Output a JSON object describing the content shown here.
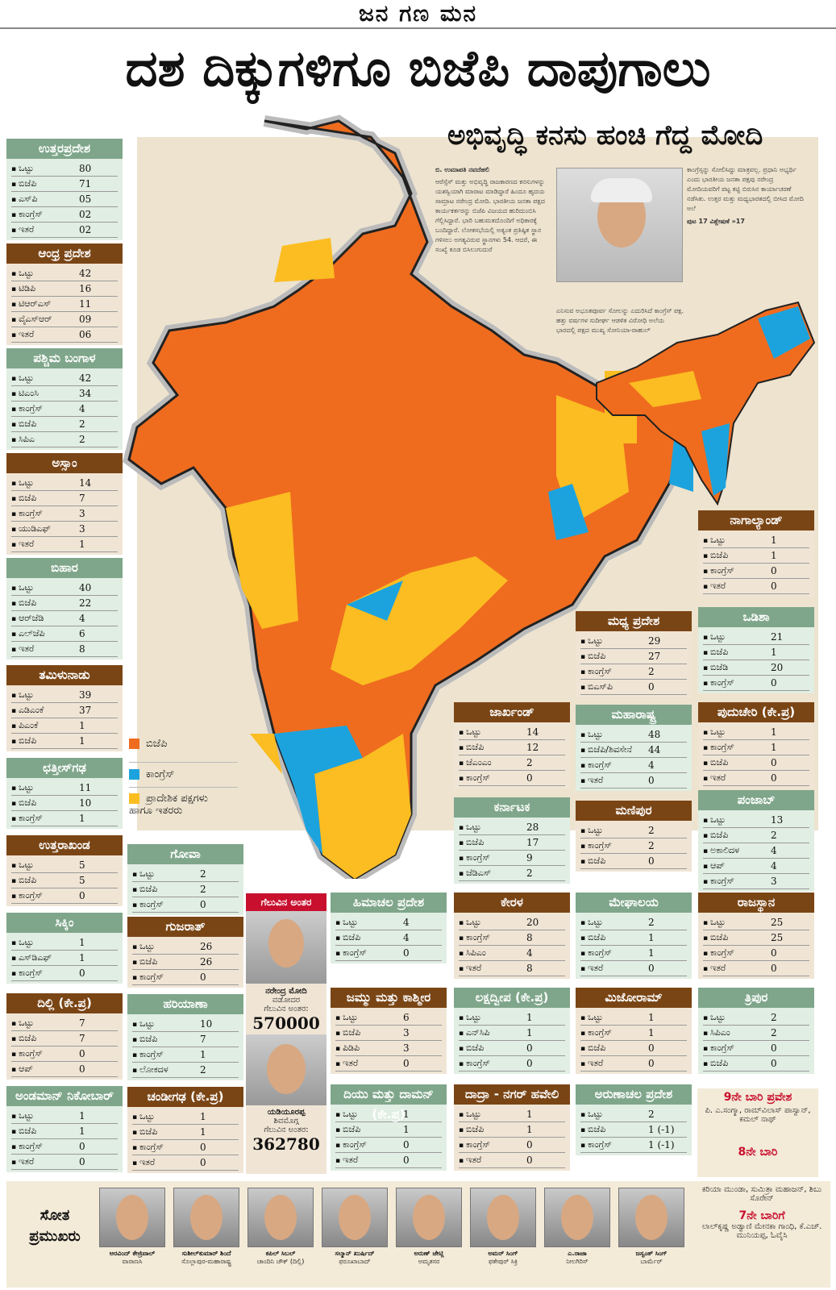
{
  "masthead": "ಜನ ಗಣ ಮನ",
  "headline": "ದಶ ದಿಕ್ಕುಗಳಿಗೂ ಬಿಜೆಪಿ ದಾಪುಗಾಲು",
  "subhead": "ಅಭಿವೃದ್ಧಿ ಕನಸು ಹಂಚಿ ಗೆದ್ದ ಮೋದಿ",
  "article": {
    "byline": "ಬಿ. ಉಮಾಪತಿ ನವದೆಹಲಿ",
    "col1": "ಆರೆಸ್ಸೆಸ್ ಮತ್ತು ಅಭಿವೃದ್ಧಿ ರಾಜಕಾರಣದ ಕನಸುಗಳನ್ನು ಯಶಸ್ವಿಯಾಗಿ ಮಾರಾಟ ಮಾಡಿದ್ದಾರೆ ಹಿಂದೂ ಹೃದಯ ಸಾಮ್ರಾಟ ನರೇಂದ್ರ ಮೋದಿ. ಭಾರತೀಯ ಜನತಾ ಪಕ್ಷದ ಕಾರ್ಯಕರ್ತರನ್ನು ಬಿಜೆಪಿ ವಿಜಯದ ಹುರಿದುಂಬಿಸಿ ಗೆಲ್ಲಿಸಿದ್ದಾರೆ. ಭಾರಿ ಬಹುಮತದೊಂದಿಗೆ ಅಧಿಕಾರಕ್ಕೆ ಬಂದಿದ್ದಾರೆ. ಲೋಕಸಭೆಯಲ್ಲಿ ಅತ್ಯಂತ ಪ್ರತಿಷ್ಠಿತ ಸ್ಥಾನ ಗಳಿಸಲು ಅಗತ್ಯವಿರುವ ಸ್ಥಾನಗಳು 54. ಆದರೆ, ಈ ಸಂಖ್ಯೆ ಕೂಡ ಬಿಸಿಲುಗುದುರೆ",
    "col2": "ಎನಿಸುವ ಅಭೂತಪೂರ್ವ ಸೋಲನ್ನು ಎದುರಿಸಿದೆ ಕಾಂಗ್ರೆಸ್ ಪಕ್ಷ. ಹತ್ತು ವರ್ಷಗಳ ಸುದೀರ್ಘ ಆಡಳಿತ ವಿರೋಧಿ ಅಲೆಯ ಭಾರದಲ್ಲಿ ಪಕ್ಷದ ಮುಖ್ಯ ಸೋನಿಯಾ-ರಾಹುಲ್",
    "col3": "ಕಾಂಗ್ರೆಸ್ಸನ್ನು ಸೋಲಿಸಿದ್ದು ಮಾತ್ರವಲ್ಲ. ಪ್ರಧಾನಿ ಅಭ್ಯರ್ಥಿ ಎಂದು ಭಾರತೀಯ ಜನತಾ ಪಕ್ಷವು ನರೇಂದ್ರ ಮೋದಿಯವರಿಗೆ ಪಟ್ಟ ಕಟ್ಟಿ ಬಿರುಸಿನ ಕಾರ್ಯಾಚರಣೆ ನಡೆಸಿತು. ಉತ್ತರ ಮತ್ತು ಮಧ್ಯಭಾರತದಲ್ಲಿ ಬೀಸಿದ ಮೋದಿ ಅಲೆ",
    "more": "ಪುಟ 17 ವಿಶ್ಲೇಷಣೆ »17"
  },
  "legend": [
    {
      "label": "ಬಿಜೆಪಿ",
      "color": "#ef6c1f"
    },
    {
      "label": "ಕಾಂಗ್ರೆಸ್",
      "color": "#1ca3de"
    },
    {
      "label": "ಪ್ರಾದೇಶಿಕ ಪಕ್ಷಗಳು ಹಾಗೂ ಇತರರು",
      "color": "#fbbd21"
    }
  ],
  "colors": {
    "bjp": "#ef6c1f",
    "congress": "#1ca3de",
    "regional": "#fbbd21",
    "green_header": "#7fa68a",
    "brown_header": "#7a4515"
  },
  "states": [
    {
      "name": "ಉತ್ತರಪ್ರದೇಶ",
      "rows": [
        [
          "ಒಟ್ಟು",
          "80"
        ],
        [
          "ಬಿಜೆಪಿ",
          "71"
        ],
        [
          "ಎಸ್‌ಪಿ",
          "05"
        ],
        [
          "ಕಾಂಗ್ರೆಸ್",
          "02"
        ],
        [
          "ಇತರೆ",
          "02"
        ]
      ]
    },
    {
      "name": "ಆಂಧ್ರ ಪ್ರದೇಶ",
      "rows": [
        [
          "ಒಟ್ಟು",
          "42"
        ],
        [
          "ಟಿಡಿಪಿ",
          "16"
        ],
        [
          "ಟಿಆರ್‌ಎಸ್",
          "11"
        ],
        [
          "ವೈಎಸ್ಆರ್",
          "09"
        ],
        [
          "ಇತರೆ",
          "06"
        ]
      ]
    },
    {
      "name": "ಪಶ್ಚಿಮ ಬಂಗಾಳ",
      "rows": [
        [
          "ಒಟ್ಟು",
          "42"
        ],
        [
          "ಟಿಎಂಸಿ",
          "34"
        ],
        [
          "ಕಾಂಗ್ರೆಸ್",
          "4"
        ],
        [
          "ಬಿಜೆಪಿ",
          "2"
        ],
        [
          "ಸಿಪಿಎ",
          "2"
        ]
      ]
    },
    {
      "name": "ಅಸ್ಸಾಂ",
      "rows": [
        [
          "ಒಟ್ಟು",
          "14"
        ],
        [
          "ಬಿಜೆಪಿ",
          "7"
        ],
        [
          "ಕಾಂಗ್ರೆಸ್",
          "3"
        ],
        [
          "ಯುಡಿಎಫ್",
          "3"
        ],
        [
          "ಇತರೆ",
          "1"
        ]
      ]
    },
    {
      "name": "ಬಿಹಾರ",
      "rows": [
        [
          "ಒಟ್ಟು",
          "40"
        ],
        [
          "ಬಿಜೆಪಿ",
          "22"
        ],
        [
          "ಆರ್‌ಜೆಡಿ",
          "4"
        ],
        [
          "ಎಲ್‌ಜೆಪಿ",
          "6"
        ],
        [
          "ಇತರೆ",
          "8"
        ]
      ]
    },
    {
      "name": "ತಮಿಳುನಾಡು",
      "rows": [
        [
          "ಒಟ್ಟು",
          "39"
        ],
        [
          "ಎಡಿಎಂಕೆ",
          "37"
        ],
        [
          "ಪಿಎಂಕೆ",
          "1"
        ],
        [
          "ಬಿಜೆಪಿ",
          "1"
        ]
      ]
    },
    {
      "name": "ಛತ್ತೀಸ್‌ಗಢ",
      "rows": [
        [
          "ಒಟ್ಟು",
          "11"
        ],
        [
          "ಬಿಜೆಪಿ",
          "10"
        ],
        [
          "ಕಾಂಗ್ರೆಸ್",
          "1"
        ]
      ]
    },
    {
      "name": "ಉತ್ತರಾಖಂಡ",
      "rows": [
        [
          "ಒಟ್ಟು",
          "5"
        ],
        [
          "ಬಿಜೆಪಿ",
          "5"
        ],
        [
          "ಕಾಂಗ್ರೆಸ್",
          "0"
        ]
      ]
    },
    {
      "name": "ಸಿಕ್ಕಿಂ",
      "rows": [
        [
          "ಒಟ್ಟು",
          "1"
        ],
        [
          "ಎಸ್‌ಡಿಎಫ್",
          "1"
        ],
        [
          "ಕಾಂಗ್ರೆಸ್",
          "0"
        ]
      ]
    },
    {
      "name": "ದಿಲ್ಲಿ (ಕೇ.ಪ್ರ)",
      "rows": [
        [
          "ಒಟ್ಟು",
          "7"
        ],
        [
          "ಬಿಜೆಪಿ",
          "7"
        ],
        [
          "ಕಾಂಗ್ರೆಸ್",
          "0"
        ],
        [
          "ಆಪ್",
          "0"
        ]
      ]
    },
    {
      "name": "ಅಂಡಮಾನ್ ನಿಕೋಬಾರ್",
      "rows": [
        [
          "ಒಟ್ಟು",
          "1"
        ],
        [
          "ಬಿಜೆಪಿ",
          "1"
        ],
        [
          "ಕಾಂಗ್ರೆಸ್",
          "0"
        ],
        [
          "ಇತರೆ",
          "0"
        ]
      ]
    },
    {
      "name": "ಗೋವಾ",
      "rows": [
        [
          "ಒಟ್ಟು",
          "2"
        ],
        [
          "ಬಿಜೆಪಿ",
          "2"
        ],
        [
          "ಕಾಂಗ್ರೆಸ್",
          "0"
        ]
      ]
    },
    {
      "name": "ಗುಜರಾತ್",
      "rows": [
        [
          "ಒಟ್ಟು",
          "26"
        ],
        [
          "ಬಿಜೆಪಿ",
          "26"
        ],
        [
          "ಕಾಂಗ್ರೆಸ್",
          "0"
        ]
      ]
    },
    {
      "name": "ಹರಿಯಾಣಾ",
      "rows": [
        [
          "ಒಟ್ಟು",
          "10"
        ],
        [
          "ಬಿಜೆಪಿ",
          "7"
        ],
        [
          "ಕಾಂಗ್ರೆಸ್",
          "1"
        ],
        [
          "ಲೋಕದಳ",
          "2"
        ]
      ]
    },
    {
      "name": "ಚಂಡೀಗಢ (ಕೇ.ಪ್ರ)",
      "rows": [
        [
          "ಒಟ್ಟು",
          "1"
        ],
        [
          "ಬಿಜೆಪಿ",
          "1"
        ],
        [
          "ಕಾಂಗ್ರೆಸ್",
          "0"
        ],
        [
          "ಇತರೆ",
          "0"
        ]
      ]
    },
    {
      "name": "ಹಿಮಾಚಲ ಪ್ರದೇಶ",
      "rows": [
        [
          "ಒಟ್ಟು",
          "4"
        ],
        [
          "ಬಿಜೆಪಿ",
          "4"
        ],
        [
          "ಕಾಂಗ್ರೆಸ್",
          "0"
        ]
      ]
    },
    {
      "name": "ಜಮ್ಮು ಮತ್ತು ಕಾಶ್ಮೀರ",
      "rows": [
        [
          "ಒಟ್ಟು",
          "6"
        ],
        [
          "ಬಿಜೆಪಿ",
          "3"
        ],
        [
          "ಪಿಡಿಪಿ",
          "3"
        ],
        [
          "ಇತರೆ",
          "0"
        ]
      ]
    },
    {
      "name": "ದಿಯು ಮತ್ತು ದಾಮನ್ (ಕೇ.ಪ್ರ)",
      "rows": [
        [
          "ಒಟ್ಟು",
          "1"
        ],
        [
          "ಬಿಜೆಪಿ",
          "1"
        ],
        [
          "ಕಾಂಗ್ರೆಸ್",
          "0"
        ],
        [
          "ಇತರೆ",
          "0"
        ]
      ]
    },
    {
      "name": "ಜಾರ್ಖಂಡ್",
      "rows": [
        [
          "ಒಟ್ಟು",
          "14"
        ],
        [
          "ಬಿಜೆಪಿ",
          "12"
        ],
        [
          "ಜೆಎಂಎಂ",
          "2"
        ],
        [
          "ಕಾಂಗ್ರೆಸ್",
          "0"
        ]
      ]
    },
    {
      "name": "ಕರ್ನಾಟಕ",
      "rows": [
        [
          "ಒಟ್ಟು",
          "28"
        ],
        [
          "ಬಿಜೆಪಿ",
          "17"
        ],
        [
          "ಕಾಂಗ್ರೆಸ್",
          "9"
        ],
        [
          "ಜೆಡಿಎಸ್",
          "2"
        ]
      ]
    },
    {
      "name": "ಕೇರಳ",
      "rows": [
        [
          "ಒಟ್ಟು",
          "20"
        ],
        [
          "ಕಾಂಗ್ರೆಸ್",
          "8"
        ],
        [
          "ಸಿಪಿಎಂ",
          "4"
        ],
        [
          "ಇತರೆ",
          "8"
        ]
      ]
    },
    {
      "name": "ಲಕ್ಷದ್ವೀಪ (ಕೇ.ಪ್ರ)",
      "rows": [
        [
          "ಒಟ್ಟು",
          "1"
        ],
        [
          "ಎನ್‌ಸಿಪಿ",
          "1"
        ],
        [
          "ಬಿಜೆಪಿ",
          "0"
        ],
        [
          "ಕಾಂಗ್ರೆಸ್",
          "0"
        ]
      ]
    },
    {
      "name": "ದಾದ್ರಾ - ನಗರ್ ಹವೇಲಿ",
      "rows": [
        [
          "ಒಟ್ಟು",
          "1"
        ],
        [
          "ಬಿಜೆಪಿ",
          "1"
        ],
        [
          "ಕಾಂಗ್ರೆಸ್",
          "0"
        ],
        [
          "ಇತರೆ",
          "0"
        ]
      ]
    },
    {
      "name": "ಮಧ್ಯ ಪ್ರದೇಶ",
      "rows": [
        [
          "ಒಟ್ಟು",
          "29"
        ],
        [
          "ಬಿಜೆಪಿ",
          "27"
        ],
        [
          "ಕಾಂಗ್ರೆಸ್",
          "2"
        ],
        [
          "ಬಿಎಸ್‌ಪಿ",
          "0"
        ]
      ]
    },
    {
      "name": "ಮಹಾರಾಷ್ಟ್ರ",
      "rows": [
        [
          "ಒಟ್ಟು",
          "48"
        ],
        [
          "ಬಿಜೆಪಿ/ಶಿವಸೇನೆ",
          "44"
        ],
        [
          "ಕಾಂಗ್ರೆಸ್",
          "4"
        ],
        [
          "ಇತರೆ",
          "0"
        ]
      ]
    },
    {
      "name": "ಮಣಿಪುರ",
      "rows": [
        [
          "ಒಟ್ಟು",
          "2"
        ],
        [
          "ಕಾಂಗ್ರೆಸ್",
          "2"
        ],
        [
          "ಬಿಜೆಪಿ",
          "0"
        ]
      ]
    },
    {
      "name": "ಮೇಘಾಲಯ",
      "rows": [
        [
          "ಒಟ್ಟು",
          "2"
        ],
        [
          "ಬಿಜೆಪಿ",
          "1"
        ],
        [
          "ಕಾಂಗ್ರೆಸ್",
          "1"
        ],
        [
          "ಇತರೆ",
          "0"
        ]
      ]
    },
    {
      "name": "ಮಿಜೋರಾಮ್",
      "rows": [
        [
          "ಒಟ್ಟು",
          "1"
        ],
        [
          "ಕಾಂಗ್ರೆಸ್",
          "1"
        ],
        [
          "ಬಿಜೆಪಿ",
          "0"
        ],
        [
          "ಇತರೆ",
          "0"
        ]
      ]
    },
    {
      "name": "ಅರುಣಾಚಲ ಪ್ರದೇಶ",
      "rows": [
        [
          "ಒಟ್ಟು",
          "2"
        ],
        [
          "ಬಿಜೆಪಿ",
          "1 (-1)"
        ],
        [
          "ಕಾಂಗ್ರೆಸ್",
          "1 (-1)"
        ]
      ]
    },
    {
      "name": "ನಾಗಾಲ್ಯಾಂಡ್",
      "rows": [
        [
          "ಒಟ್ಟು",
          "1"
        ],
        [
          "ಬಿಜೆಪಿ",
          "1"
        ],
        [
          "ಕಾಂಗ್ರೆಸ್",
          "0"
        ],
        [
          "ಇತರೆ",
          "0"
        ]
      ]
    },
    {
      "name": "ಒಡಿಶಾ",
      "rows": [
        [
          "ಒಟ್ಟು",
          "21"
        ],
        [
          "ಬಿಜೆಪಿ",
          "1"
        ],
        [
          "ಬಿಜೆಡಿ",
          "20"
        ],
        [
          "ಕಾಂಗ್ರೆಸ್",
          "0"
        ]
      ]
    },
    {
      "name": "ಪುದುಚೇರಿ (ಕೇ.ಪ್ರ)",
      "rows": [
        [
          "ಒಟ್ಟು",
          "1"
        ],
        [
          "ಕಾಂಗ್ರೆಸ್",
          "1"
        ],
        [
          "ಬಿಜೆಪಿ",
          "0"
        ],
        [
          "ಇತರೆ",
          "0"
        ]
      ]
    },
    {
      "name": "ಪಂಜಾಬ್",
      "rows": [
        [
          "ಒಟ್ಟು",
          "13"
        ],
        [
          "ಬಿಜೆಪಿ",
          "2"
        ],
        [
          "ಅಕಾಲಿದಳ",
          "4"
        ],
        [
          "ಆಪ್",
          "4"
        ],
        [
          "ಕಾಂಗ್ರೆಸ್",
          "3"
        ]
      ]
    },
    {
      "name": "ರಾಜಸ್ಥಾನ",
      "rows": [
        [
          "ಒಟ್ಟು",
          "25"
        ],
        [
          "ಬಿಜೆಪಿ",
          "25"
        ],
        [
          "ಕಾಂಗ್ರೆಸ್",
          "0"
        ],
        [
          "ಇತರೆ",
          "0"
        ]
      ]
    },
    {
      "name": "ತ್ರಿಪುರ",
      "rows": [
        [
          "ಒಟ್ಟು",
          "2"
        ],
        [
          "ಸಿಪಿಎಂ",
          "2"
        ],
        [
          "ಕಾಂಗ್ರೆಸ್",
          "0"
        ],
        [
          "ಬಿಜೆಪಿ",
          "0"
        ]
      ]
    }
  ],
  "margin": {
    "title": "ಗೆಲುವಿನ ಅಂತರ",
    "modi_name": "ನರೇಂದ್ರ ಮೋದಿ",
    "modi_place": "ವಡೋದರ",
    "modi_label": "ಗೆಲುವಿನ ಅಂತರ:",
    "modi_value": "570000",
    "bsy_name": "ಯಡಿಯೂರಪ್ಪ",
    "bsy_place": "ಶಿವಮೊಗ್ಗ",
    "bsy_label": "ಗೆಲುವಿನ ಅಂತರ:",
    "bsy_value": "362780"
  },
  "side_note": {
    "t1": "9ನೇ ಬಾರಿ ಪ್ರವೇಶ",
    "p1": "ಪಿ. ಎ.ಸಂಗ್ಮಾ, ರಾಮ್‌ವಿಲಾಸ್ ಪಾಸ್ವಾನ್, ಕಮಲ್ ನಾಥ್",
    "t2": "8ನೇ ಬಾರಿ",
    "p2": "ಕರಿಯಾ ಮುಂಡಾ, ಸುಮಿತ್ರಾ ಮಹಾಜನ್, ಶಿಬು ಸೊರೇನ್",
    "t3": "7ನೇ ಬಾರಿಗೆ",
    "p3": "ಲಾಲ್‌ಕೃಷ್ಣ ಅಡ್ವಾಣಿ ಮೇನಕಾ ಗಾಂಧಿ, ಕೆ.ಎಚ್. ಮುನಿಯಪ್ಪ, ಓವೈಸಿ"
  },
  "losers": {
    "title": "ಸೋತ ಪ್ರಮುಖರು",
    "people": [
      {
        "name": "ಅರವಿಂದ್ ಕೇಜ್ರಿವಾಲ್",
        "place": "ವಾರಾಣಸಿ"
      },
      {
        "name": "ಸುಶೀಲ್‌ಕುಮಾರ್ ಶಿಂದೆ",
        "place": "ಸೊಲ್ಲಾಪುರ-ಮಹಾರಾಷ್ಟ್ರ"
      },
      {
        "name": "ಕಪಿಲ್ ಸಿಬಲ್",
        "place": "ಚಾಂದಿನಿ ಚೌಕ್ (ದಿಲ್ಲಿ)"
      },
      {
        "name": "ಸಲ್ಮಾನ್ ಖುರ್ಷಿದ್",
        "place": "ಫರೂಖಾಬಾದ್"
      },
      {
        "name": "ಅರುಣ್ ಜೇಟ್ಲಿ",
        "place": "ಅಮೃತಸರ"
      },
      {
        "name": "ಅಮರ್ ಸಿಂಗ್",
        "place": "ಫತೇಪುರ್ ಸಿಕ್ರಿ"
      },
      {
        "name": "ಎ.ರಾಜಾ",
        "place": "ನೀಲಗಿರಿಸ್"
      },
      {
        "name": "ಜಸ್ವಂತ್ ಸಿಂಗ್",
        "place": "ಬಾರ್ಮೆರ್"
      }
    ]
  }
}
